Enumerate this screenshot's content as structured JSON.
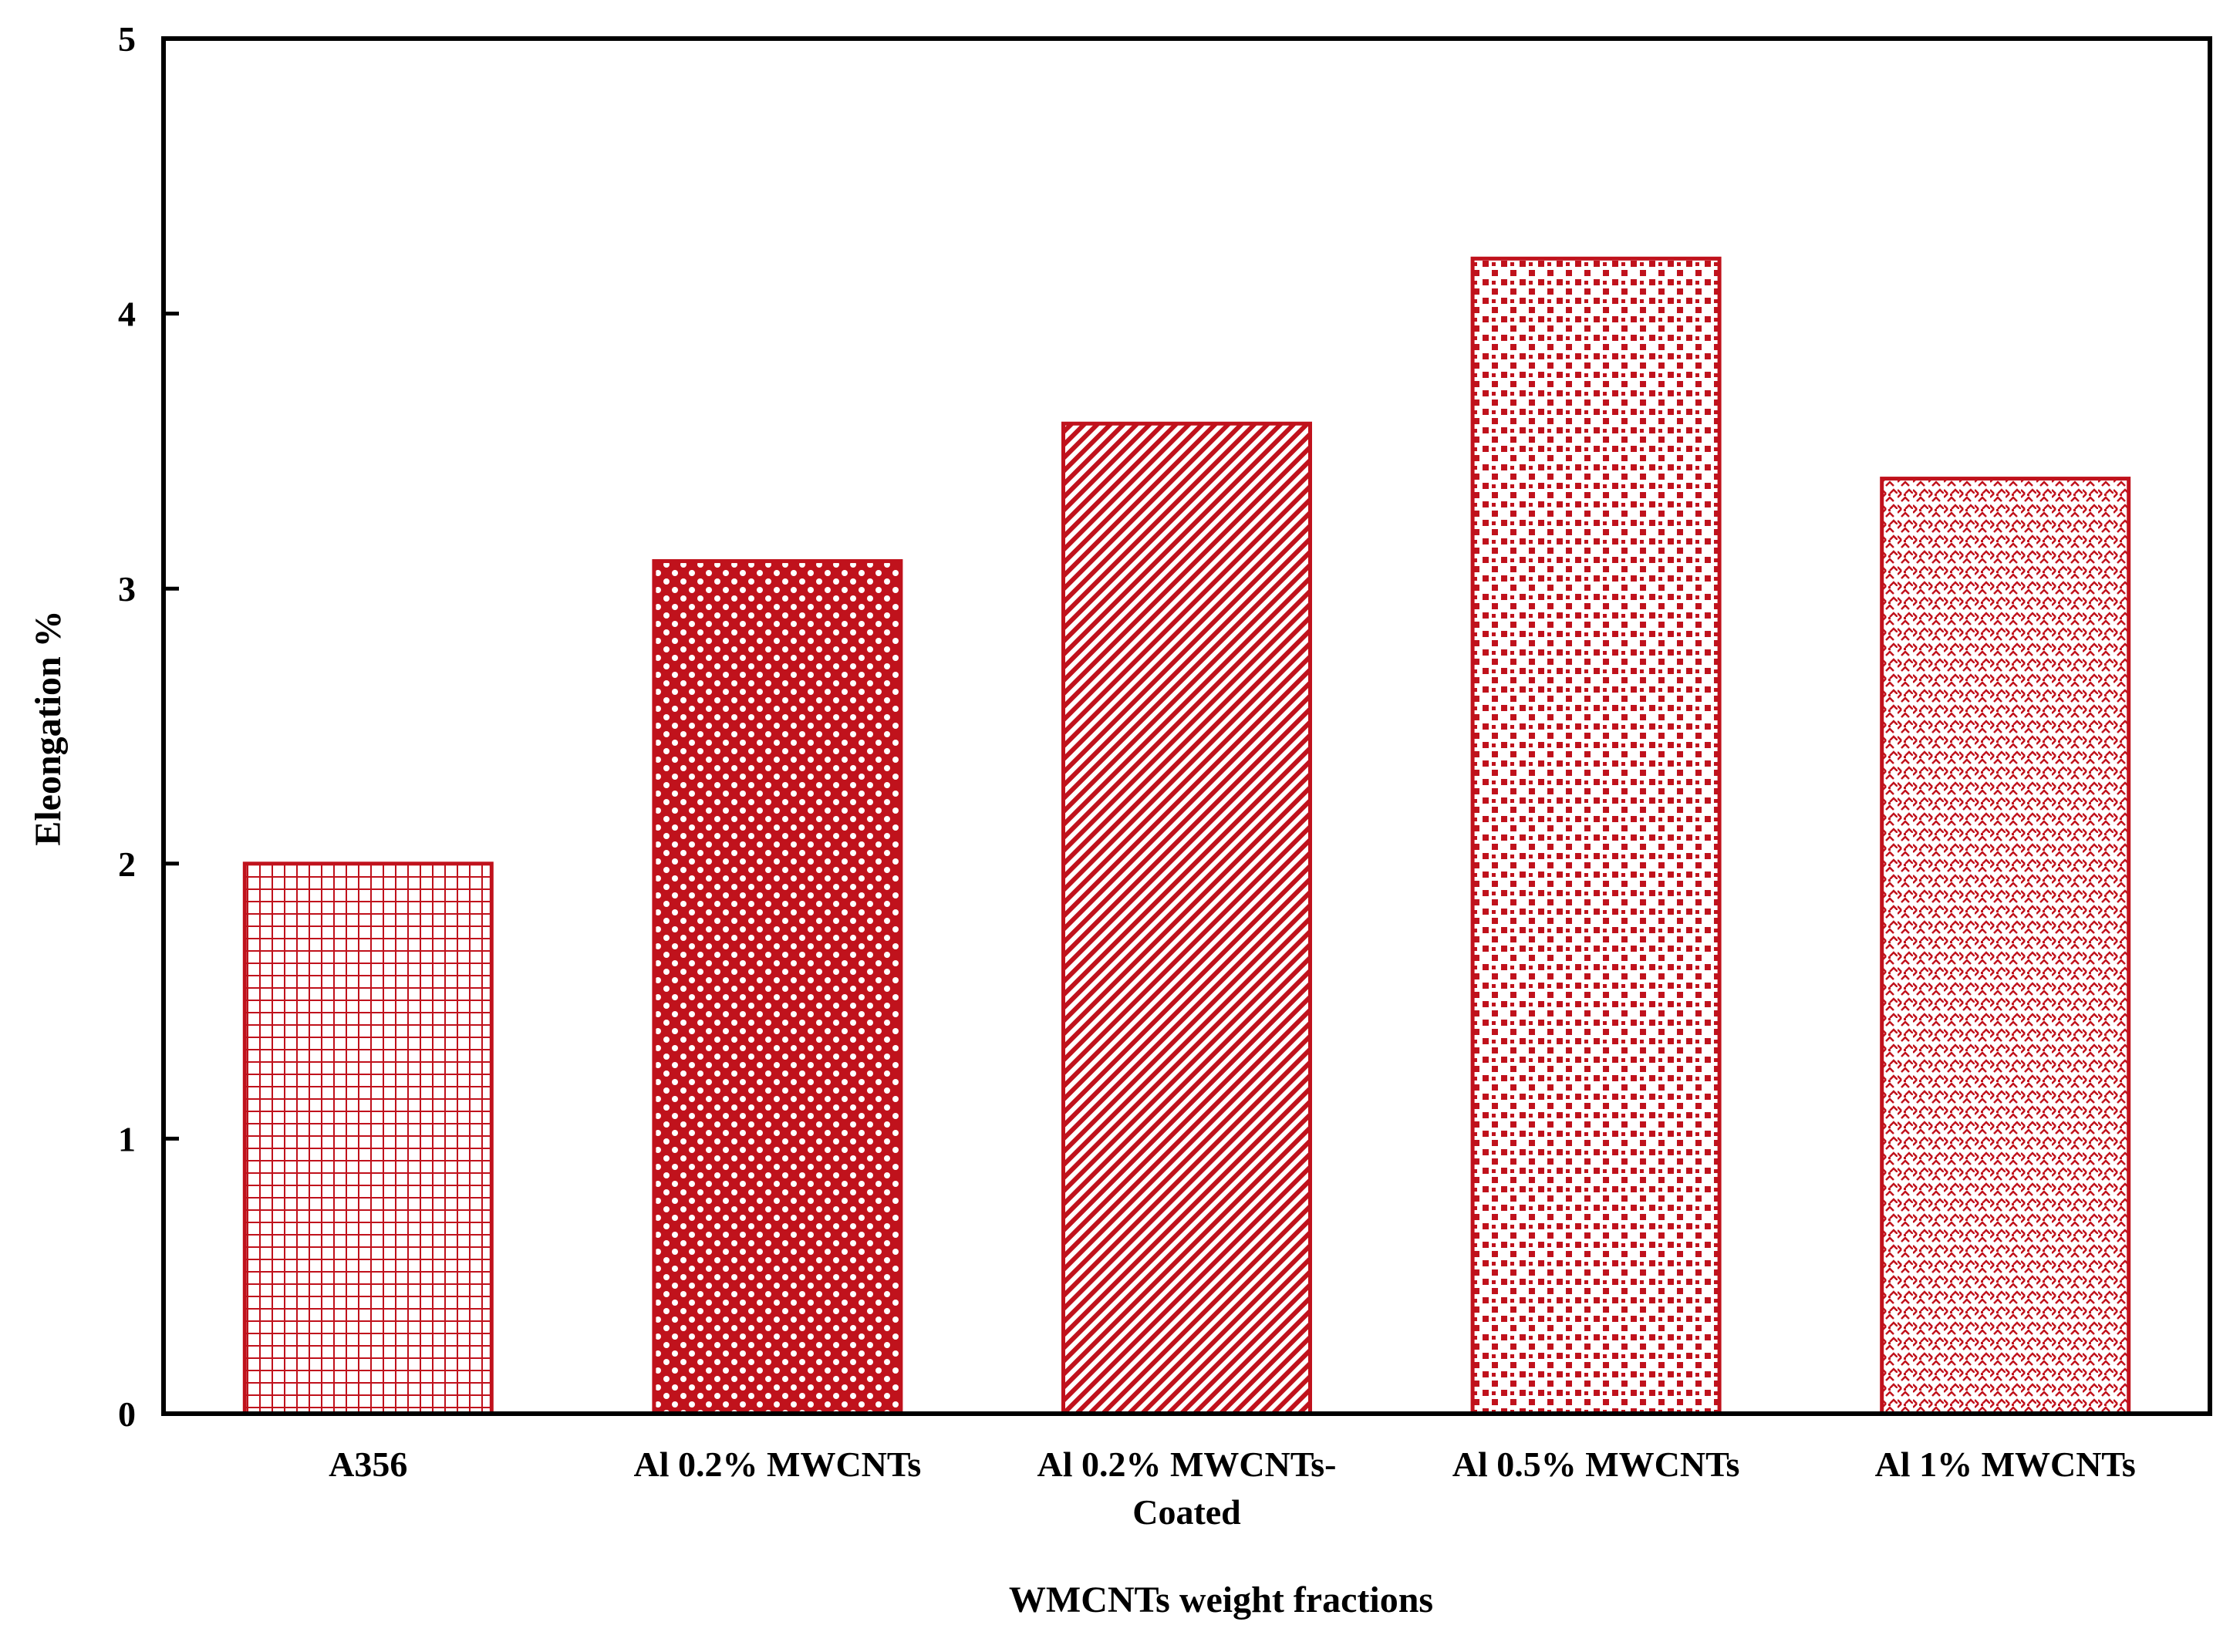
{
  "chart_data": {
    "type": "bar",
    "title": "",
    "xlabel": "WMCNTs weight fractions",
    "ylabel": "Eleongation %",
    "categories": [
      [
        "A356"
      ],
      [
        "Al 0.2% MWCNTs"
      ],
      [
        "Al 0.2% MWCNTs-",
        "Coated"
      ],
      [
        "Al 0.5% MWCNTs"
      ],
      [
        "Al 1% MWCNTs"
      ]
    ],
    "values": [
      2.0,
      3.1,
      3.6,
      4.2,
      3.4
    ],
    "ylim": [
      0,
      5
    ],
    "yticks": [
      "0",
      "1",
      "2",
      "3",
      "4",
      "5"
    ],
    "grid": false,
    "bar_color": "#c0121c",
    "bar_patterns": [
      "grid",
      "dots",
      "diagonal",
      "squares",
      "weave"
    ]
  }
}
